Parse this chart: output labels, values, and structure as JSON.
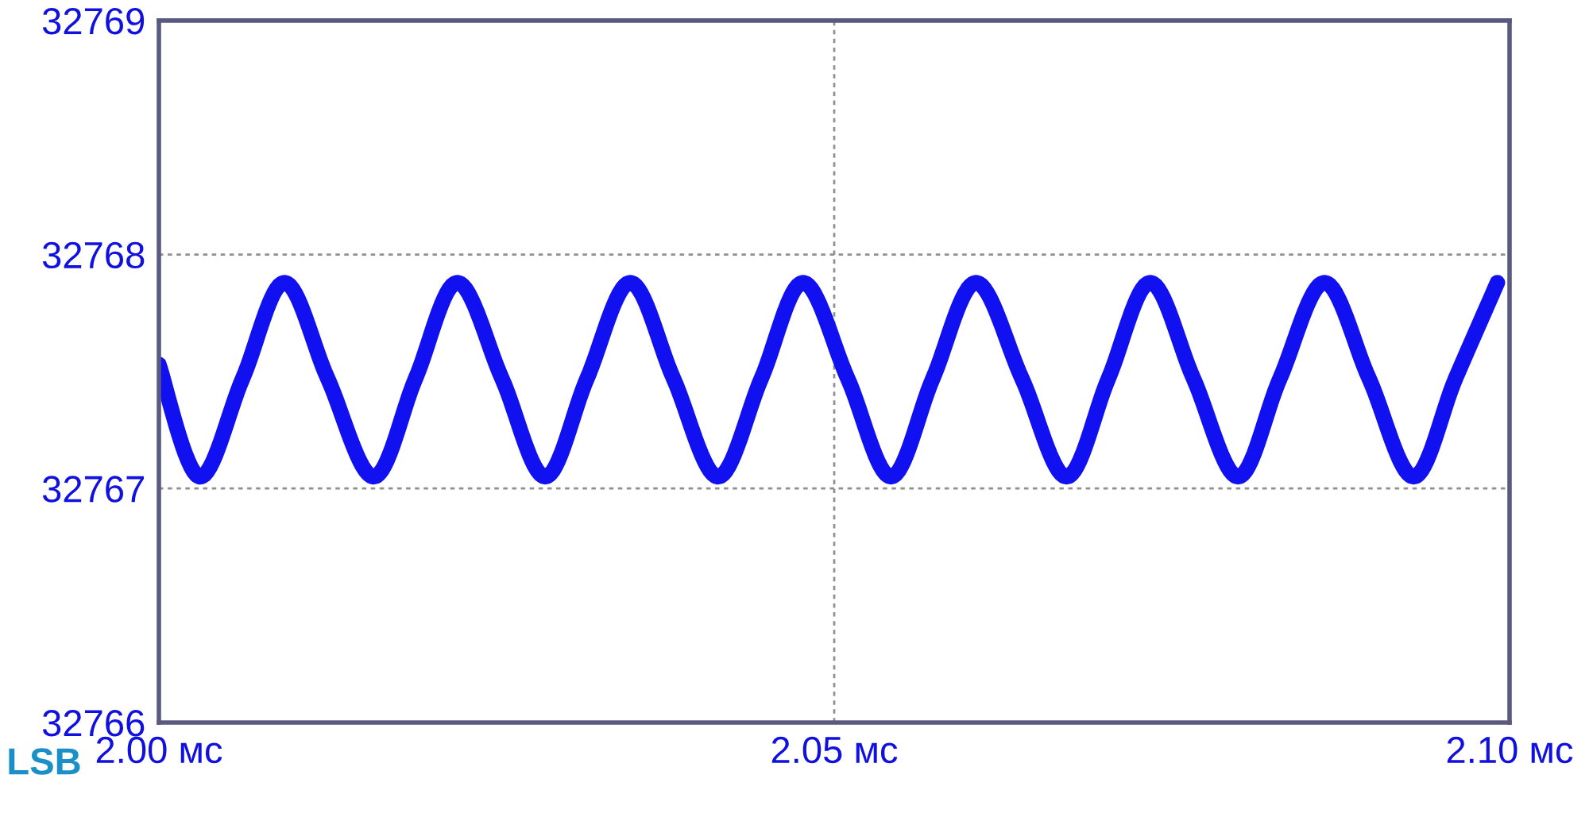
{
  "chart_data": {
    "type": "line",
    "ylabel": "LSB",
    "xlim": [
      2.0,
      2.1
    ],
    "ylim": [
      32766,
      32769
    ],
    "xticks": [
      {
        "value": 2.0,
        "label": "2.00 мс"
      },
      {
        "value": 2.05,
        "label": "2.05 мс"
      },
      {
        "value": 2.1,
        "label": "2.10 мс"
      }
    ],
    "yticks": [
      32766,
      32767,
      32768,
      32769
    ],
    "grid": true,
    "legend": false,
    "marker": "none",
    "line_style": "solid",
    "series": [
      {
        "color": "#1010f0",
        "x": [
          2.0,
          2.003,
          2.0062,
          2.0093,
          2.0125,
          2.0159,
          2.019,
          2.0221,
          2.0254,
          2.0286,
          2.0317,
          2.0349,
          2.0381,
          2.0414,
          2.0446,
          2.0477,
          2.051,
          2.0542,
          2.0573,
          2.0605,
          2.0639,
          2.0672,
          2.0703,
          2.0734,
          2.0766,
          2.0799,
          2.083,
          2.0863,
          2.0896,
          2.0929,
          2.096,
          2.0991
        ],
        "values": [
          32767.53,
          32767.05,
          32767.47,
          32767.88,
          32767.47,
          32767.05,
          32767.47,
          32767.88,
          32767.47,
          32767.05,
          32767.47,
          32767.88,
          32767.47,
          32767.05,
          32767.47,
          32767.88,
          32767.47,
          32767.05,
          32767.47,
          32767.88,
          32767.47,
          32767.05,
          32767.47,
          32767.88,
          32767.47,
          32767.05,
          32767.47,
          32767.88,
          32767.47,
          32767.05,
          32767.47,
          32767.88
        ]
      }
    ]
  }
}
